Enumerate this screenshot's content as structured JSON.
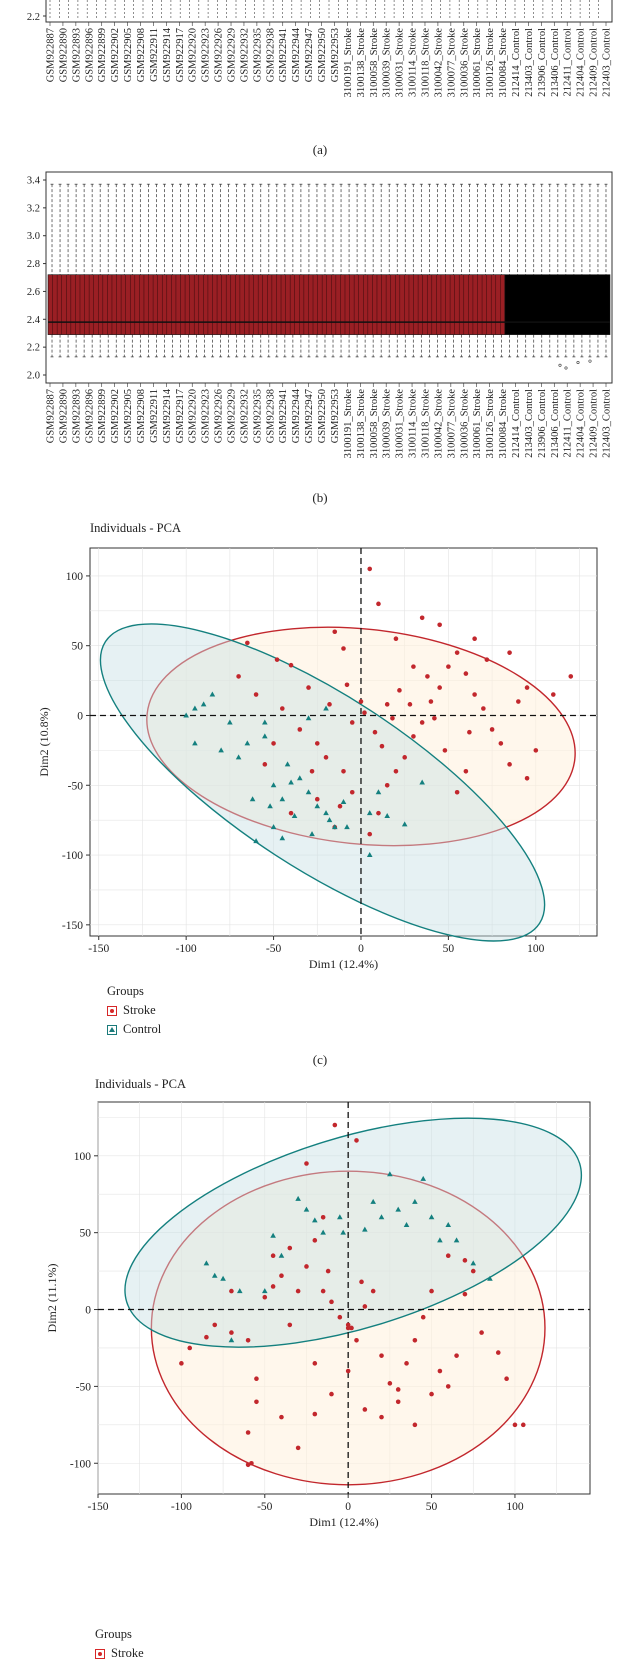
{
  "captions": {
    "a": "(a)",
    "b": "(b)",
    "c": "(c)"
  },
  "colors": {
    "stroke": "#c2272d",
    "control": "#14807f",
    "box_b_stroke": "#9a1f24",
    "box_b_control": "#000000"
  },
  "samples": [
    "GSM922887",
    "GSM922890",
    "GSM922893",
    "GSM922896",
    "GSM922899",
    "GSM922902",
    "GSM922905",
    "GSM922908",
    "GSM922911",
    "GSM922914",
    "GSM922917",
    "GSM922920",
    "GSM922923",
    "GSM922926",
    "GSM922929",
    "GSM922932",
    "GSM922935",
    "GSM922938",
    "GSM922941",
    "GSM922944",
    "GSM922947",
    "GSM922950",
    "GSM922953",
    "3100191_Stroke",
    "3100138_Stroke",
    "3100058_Stroke",
    "3100039_Stroke",
    "3100031_Stroke",
    "3100114_Stroke",
    "3100118_Stroke",
    "3100042_Stroke",
    "3100077_Stroke",
    "3100036_Stroke",
    "3100061_Stroke",
    "3100126_Stroke",
    "3100084_Stroke",
    "212414_Control",
    "213403_Control",
    "213906_Control",
    "213406_Control",
    "212411_Control",
    "212404_Control",
    "212409_Control",
    "212403_Control"
  ],
  "chart_data": [
    {
      "type": "box",
      "panel": "a",
      "note": "top of panel cropped; only lower axis visible",
      "y_ticks_visible": [
        "2.2"
      ]
    },
    {
      "type": "box",
      "panel": "b",
      "ylim": [
        2.0,
        3.4
      ],
      "y_ticks": [
        "2.0",
        "2.2",
        "2.4",
        "2.6",
        "2.8",
        "3.0",
        "3.2",
        "3.4"
      ],
      "box": {
        "q1": 2.29,
        "median": 2.38,
        "q3": 2.72,
        "whisker_low": 2.13,
        "whisker_high": 3.37
      },
      "n_stroke_boxes": 100,
      "n_control_boxes": 23
    },
    {
      "type": "scatter",
      "panel": "c",
      "title": "Individuals - PCA",
      "xlabel": "Dim1 (12.4%)",
      "ylabel": "Dim2 (10.8%)",
      "xlim": [
        -155,
        135
      ],
      "ylim": [
        -158,
        120
      ],
      "x_ticks": [
        "-150",
        "-100",
        "-50",
        "0",
        "50",
        "100"
      ],
      "y_ticks": [
        "-150",
        "-100",
        "-50",
        "0",
        "50",
        "100"
      ],
      "legend_title": "Groups",
      "legend": [
        "Stroke",
        "Control"
      ],
      "series": [
        {
          "name": "Stroke",
          "points": [
            [
              -65,
              52
            ],
            [
              -48,
              40
            ],
            [
              -40,
              36
            ],
            [
              -15,
              60
            ],
            [
              -10,
              48
            ],
            [
              -30,
              20
            ],
            [
              -45,
              5
            ],
            [
              -35,
              -10
            ],
            [
              -25,
              -20
            ],
            [
              -20,
              -30
            ],
            [
              -10,
              -40
            ],
            [
              -5,
              -55
            ],
            [
              -25,
              -60
            ],
            [
              -40,
              -70
            ],
            [
              -15,
              -80
            ],
            [
              5,
              -85
            ],
            [
              10,
              -70
            ],
            [
              15,
              -50
            ],
            [
              20,
              -40
            ],
            [
              25,
              -30
            ],
            [
              30,
              -15
            ],
            [
              35,
              -5
            ],
            [
              40,
              10
            ],
            [
              45,
              20
            ],
            [
              50,
              35
            ],
            [
              55,
              45
            ],
            [
              60,
              30
            ],
            [
              65,
              15
            ],
            [
              70,
              5
            ],
            [
              75,
              -10
            ],
            [
              80,
              -20
            ],
            [
              85,
              -35
            ],
            [
              90,
              10
            ],
            [
              95,
              20
            ],
            [
              100,
              -25
            ],
            [
              110,
              15
            ],
            [
              120,
              28
            ],
            [
              60,
              -40
            ],
            [
              55,
              -55
            ],
            [
              48,
              -25
            ],
            [
              30,
              35
            ],
            [
              20,
              55
            ],
            [
              10,
              80
            ],
            [
              5,
              105
            ],
            [
              0,
              10
            ],
            [
              -5,
              -5
            ],
            [
              8,
              -12
            ],
            [
              12,
              -22
            ],
            [
              22,
              18
            ],
            [
              28,
              8
            ],
            [
              38,
              28
            ],
            [
              42,
              -2
            ],
            [
              62,
              -12
            ],
            [
              72,
              40
            ],
            [
              85,
              45
            ],
            [
              95,
              -45
            ],
            [
              -60,
              15
            ],
            [
              -50,
              -20
            ],
            [
              -28,
              -40
            ],
            [
              -18,
              8
            ],
            [
              -8,
              22
            ],
            [
              2,
              2
            ],
            [
              18,
              -2
            ],
            [
              -70,
              28
            ],
            [
              -55,
              -35
            ],
            [
              -12,
              -65
            ],
            [
              35,
              70
            ],
            [
              45,
              65
            ],
            [
              65,
              55
            ],
            [
              15,
              8
            ]
          ]
        },
        {
          "name": "Control",
          "points": [
            [
              -100,
              0
            ],
            [
              -95,
              5
            ],
            [
              -90,
              8
            ],
            [
              -85,
              15
            ],
            [
              -75,
              -5
            ],
            [
              -80,
              -25
            ],
            [
              -70,
              -30
            ],
            [
              -65,
              -20
            ],
            [
              -55,
              -15
            ],
            [
              -50,
              -50
            ],
            [
              -45,
              -60
            ],
            [
              -40,
              -48
            ],
            [
              -35,
              -45
            ],
            [
              -30,
              -55
            ],
            [
              -25,
              -65
            ],
            [
              -20,
              -70
            ],
            [
              -15,
              -80
            ],
            [
              -60,
              -90
            ],
            [
              -50,
              -80
            ],
            [
              -45,
              -88
            ],
            [
              -38,
              -72
            ],
            [
              -28,
              -85
            ],
            [
              -18,
              -75
            ],
            [
              5,
              -70
            ],
            [
              25,
              -78
            ],
            [
              35,
              -48
            ],
            [
              10,
              -55
            ],
            [
              -8,
              -80
            ],
            [
              -30,
              -2
            ],
            [
              -42,
              -35
            ],
            [
              -52,
              -65
            ],
            [
              -62,
              -60
            ],
            [
              -10,
              -62
            ],
            [
              5,
              -100
            ],
            [
              15,
              -72
            ],
            [
              -95,
              -20
            ],
            [
              -55,
              -5
            ],
            [
              -20,
              5
            ]
          ]
        }
      ],
      "ellipses": [
        {
          "group": "Stroke",
          "cx": 0,
          "cy": -15,
          "rx": 123,
          "ry": 77,
          "angle_deg": 6
        },
        {
          "group": "Control",
          "cx": -22,
          "cy": -48,
          "rx": 148,
          "ry": 62,
          "angle_deg": 33
        }
      ]
    },
    {
      "type": "scatter",
      "panel": "d",
      "title": "Individuals - PCA",
      "xlabel": "Dim1 (12.4%)",
      "ylabel": "Dim2 (11.1%)",
      "xlim": [
        -150,
        145
      ],
      "ylim": [
        -120,
        135
      ],
      "x_ticks": [
        "-150",
        "-100",
        "-50",
        "0",
        "50",
        "100"
      ],
      "y_ticks": [
        "-100",
        "-50",
        "0",
        "50",
        "100"
      ],
      "legend_title": "Groups",
      "legend": [
        "Stroke"
      ],
      "series": [
        {
          "name": "Stroke",
          "points": [
            [
              -100,
              -35
            ],
            [
              -95,
              -25
            ],
            [
              -80,
              -10
            ],
            [
              -70,
              12
            ],
            [
              -60,
              -20
            ],
            [
              -55,
              -45
            ],
            [
              -50,
              8
            ],
            [
              -45,
              15
            ],
            [
              -40,
              22
            ],
            [
              -35,
              -10
            ],
            [
              -30,
              12
            ],
            [
              -25,
              28
            ],
            [
              -20,
              -35
            ],
            [
              -15,
              12
            ],
            [
              -10,
              5
            ],
            [
              -5,
              -5
            ],
            [
              0,
              -10
            ],
            [
              5,
              -20
            ],
            [
              10,
              2
            ],
            [
              15,
              12
            ],
            [
              20,
              -30
            ],
            [
              25,
              -48
            ],
            [
              30,
              -60
            ],
            [
              35,
              -35
            ],
            [
              40,
              -20
            ],
            [
              45,
              -5
            ],
            [
              50,
              12
            ],
            [
              55,
              -40
            ],
            [
              60,
              -50
            ],
            [
              65,
              -30
            ],
            [
              70,
              10
            ],
            [
              75,
              25
            ],
            [
              80,
              -15
            ],
            [
              90,
              -28
            ],
            [
              95,
              -45
            ],
            [
              100,
              -75
            ],
            [
              105,
              -75
            ],
            [
              -60,
              -80
            ],
            [
              -55,
              -60
            ],
            [
              -40,
              -70
            ],
            [
              -30,
              -90
            ],
            [
              -20,
              -68
            ],
            [
              -10,
              -55
            ],
            [
              0,
              -40
            ],
            [
              10,
              -65
            ],
            [
              20,
              -70
            ],
            [
              30,
              -52
            ],
            [
              40,
              -75
            ],
            [
              50,
              -55
            ],
            [
              -58,
              -100
            ],
            [
              -60,
              -101
            ],
            [
              -20,
              45
            ],
            [
              -15,
              60
            ],
            [
              -25,
              95
            ],
            [
              -8,
              120
            ],
            [
              5,
              110
            ],
            [
              -45,
              35
            ],
            [
              -35,
              40
            ],
            [
              -70,
              -15
            ],
            [
              -85,
              -18
            ],
            [
              0,
              -12
            ],
            [
              2,
              -12
            ],
            [
              60,
              35
            ],
            [
              70,
              32
            ],
            [
              -12,
              25
            ],
            [
              8,
              18
            ]
          ]
        },
        {
          "name": "Control",
          "points": [
            [
              -85,
              30
            ],
            [
              -80,
              22
            ],
            [
              -75,
              20
            ],
            [
              -70,
              -20
            ],
            [
              -65,
              12
            ],
            [
              -50,
              12
            ],
            [
              -45,
              48
            ],
            [
              -40,
              35
            ],
            [
              -30,
              72
            ],
            [
              -25,
              65
            ],
            [
              -20,
              58
            ],
            [
              -15,
              50
            ],
            [
              -5,
              60
            ],
            [
              -3,
              50
            ],
            [
              10,
              52
            ],
            [
              15,
              70
            ],
            [
              20,
              60
            ],
            [
              25,
              88
            ],
            [
              30,
              65
            ],
            [
              35,
              55
            ],
            [
              40,
              70
            ],
            [
              45,
              85
            ],
            [
              50,
              60
            ],
            [
              55,
              45
            ],
            [
              60,
              55
            ],
            [
              65,
              45
            ],
            [
              75,
              30
            ],
            [
              85,
              20
            ]
          ]
        }
      ],
      "ellipses": [
        {
          "group": "Stroke",
          "cx": 0,
          "cy": -12,
          "rx": 118,
          "ry": 102,
          "angle_deg": 0
        },
        {
          "group": "Control",
          "cx": 3,
          "cy": 50,
          "rx": 142,
          "ry": 62,
          "angle_deg": -17
        }
      ]
    }
  ]
}
